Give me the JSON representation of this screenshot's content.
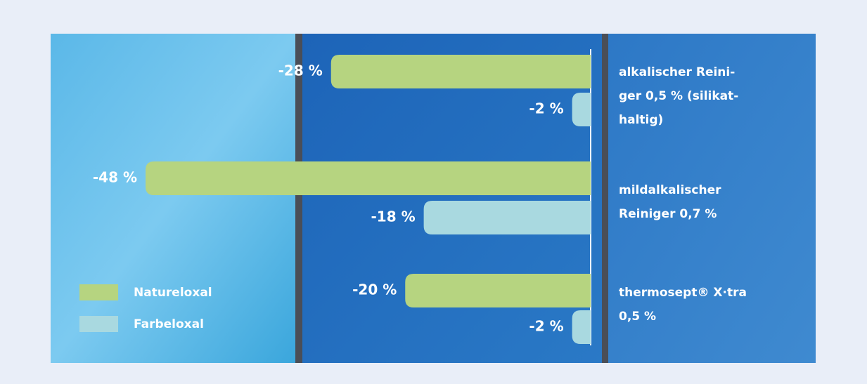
{
  "chart_data": {
    "type": "bar",
    "categories": [
      [
        "alkalischer Reini-",
        "ger 0,5 % (silikat-",
        "haltig)"
      ],
      [
        "mildalkalischer",
        "Reiniger 0,7 %"
      ],
      [
        "thermosept® X·tra",
        "0,5 %"
      ]
    ],
    "series": [
      {
        "name": "Natureloxal",
        "color": "#b6d480",
        "values": [
          -28,
          -48,
          -20
        ],
        "value_labels": [
          "-28 %",
          "-48 %",
          "-20 %"
        ]
      },
      {
        "name": "Farbeloxal",
        "color": "#a9d9e0",
        "values": [
          -2,
          -18,
          -2
        ],
        "value_labels": [
          "-2 %",
          "-18 %",
          "-2 %"
        ]
      }
    ]
  }
}
